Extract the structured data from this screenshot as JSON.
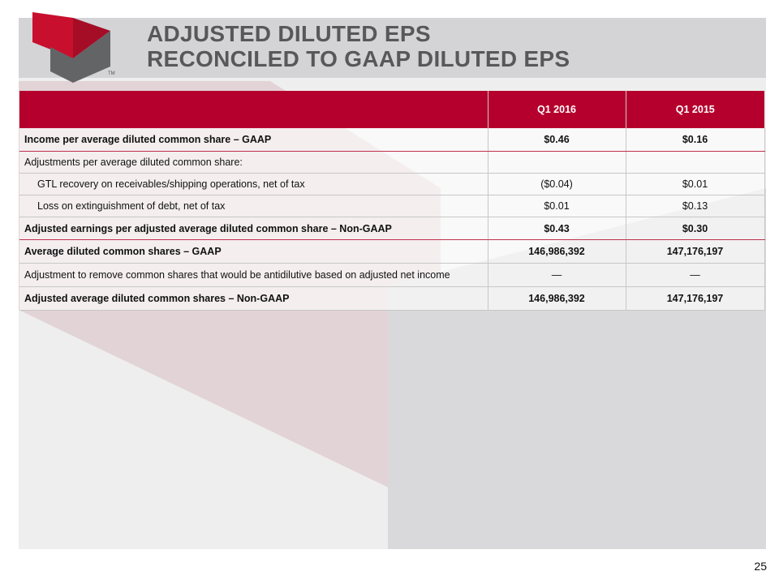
{
  "slide": {
    "title_line1": "ADJUSTED DILUTED EPS",
    "title_line2": "RECONCILED TO GAAP DILUTED EPS",
    "page_number": "25",
    "trademark": "TM"
  },
  "colors": {
    "brand_red": "#b5002d",
    "title_gray": "#58585a",
    "header_band": "#d4d4d6"
  },
  "table": {
    "columns": [
      "",
      "Q1 2016",
      "Q1 2015"
    ],
    "rows": [
      {
        "label": "Income per average diluted common share – GAAP",
        "q1_2016": "$0.46",
        "q1_2015": "$0.16"
      },
      {
        "label": "Adjustments per average diluted common share:",
        "q1_2016": "",
        "q1_2015": ""
      },
      {
        "label": "GTL recovery on receivables/shipping operations, net of tax",
        "q1_2016": "($0.04)",
        "q1_2015": "$0.01"
      },
      {
        "label": "Loss on extinguishment of debt, net of tax",
        "q1_2016": "$0.01",
        "q1_2015": "$0.13"
      },
      {
        "label": "Adjusted earnings per adjusted average diluted common share – Non-GAAP",
        "q1_2016": "$0.43",
        "q1_2015": "$0.30"
      },
      {
        "label": "Average diluted common shares – GAAP",
        "q1_2016": "146,986,392",
        "q1_2015": "147,176,197"
      },
      {
        "label": "Adjustment to remove common shares that would be antidilutive based on adjusted net income",
        "q1_2016": "—",
        "q1_2015": "—"
      },
      {
        "label": "Adjusted average diluted common shares – Non-GAAP",
        "q1_2016": "146,986,392",
        "q1_2015": "147,176,197"
      }
    ]
  }
}
